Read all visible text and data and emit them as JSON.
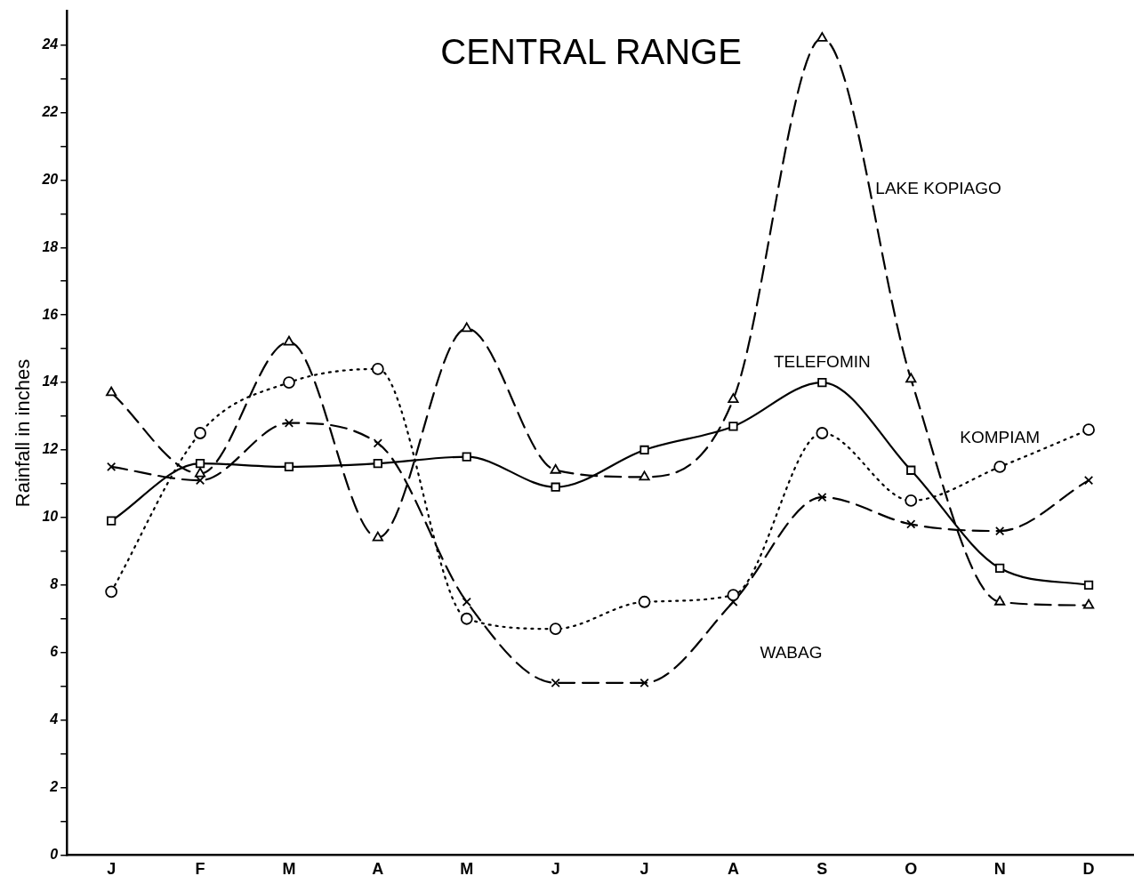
{
  "chart_data": {
    "type": "line",
    "title": "CENTRAL RANGE",
    "ylabel": "Rainfall in inches",
    "categories": [
      "J",
      "F",
      "M",
      "A",
      "M",
      "J",
      "J",
      "A",
      "S",
      "O",
      "N",
      "D"
    ],
    "ylim": [
      0,
      25
    ],
    "yticks": [
      0,
      {
        "value": 1,
        "label": null
      },
      2,
      {
        "value": 3,
        "label": null
      },
      4,
      {
        "value": 5,
        "label": null
      },
      6,
      {
        "value": 7,
        "label": null
      },
      8,
      {
        "value": 9,
        "label": null
      },
      10,
      {
        "value": 11,
        "label": null
      },
      12,
      {
        "value": 13,
        "label": null
      },
      14,
      {
        "value": 15,
        "label": null
      },
      16,
      {
        "value": 17,
        "label": null
      },
      18,
      {
        "value": 19,
        "label": null
      },
      20,
      {
        "value": 21,
        "label": null
      },
      22,
      {
        "value": 23,
        "label": null
      },
      24
    ],
    "grid": false,
    "legend": false,
    "series": [
      {
        "name": "LAKE KOPIAGO",
        "color": "#000000",
        "marker": "triangle",
        "line_style": "dashed",
        "values": [
          13.7,
          11.3,
          15.2,
          9.4,
          15.6,
          11.4,
          11.2,
          13.5,
          24.2,
          14.1,
          7.5,
          7.4
        ]
      },
      {
        "name": "TELEFOMIN",
        "color": "#000000",
        "marker": "square",
        "line_style": "solid",
        "values": [
          9.9,
          11.6,
          11.5,
          11.6,
          11.8,
          10.9,
          12.0,
          12.7,
          14.0,
          11.4,
          8.5,
          8.0
        ]
      },
      {
        "name": "KOMPIAM",
        "color": "#000000",
        "marker": "circle",
        "line_style": "dotted",
        "values": [
          7.8,
          12.5,
          14.0,
          14.4,
          7.0,
          6.7,
          7.5,
          7.7,
          12.5,
          10.5,
          11.5,
          12.6
        ]
      },
      {
        "name": "WABAG",
        "color": "#000000",
        "marker": "cross",
        "line_style": "dashed",
        "values": [
          11.5,
          11.1,
          12.8,
          12.2,
          7.5,
          5.1,
          5.1,
          7.5,
          10.6,
          9.8,
          9.6,
          11.1
        ]
      }
    ]
  }
}
